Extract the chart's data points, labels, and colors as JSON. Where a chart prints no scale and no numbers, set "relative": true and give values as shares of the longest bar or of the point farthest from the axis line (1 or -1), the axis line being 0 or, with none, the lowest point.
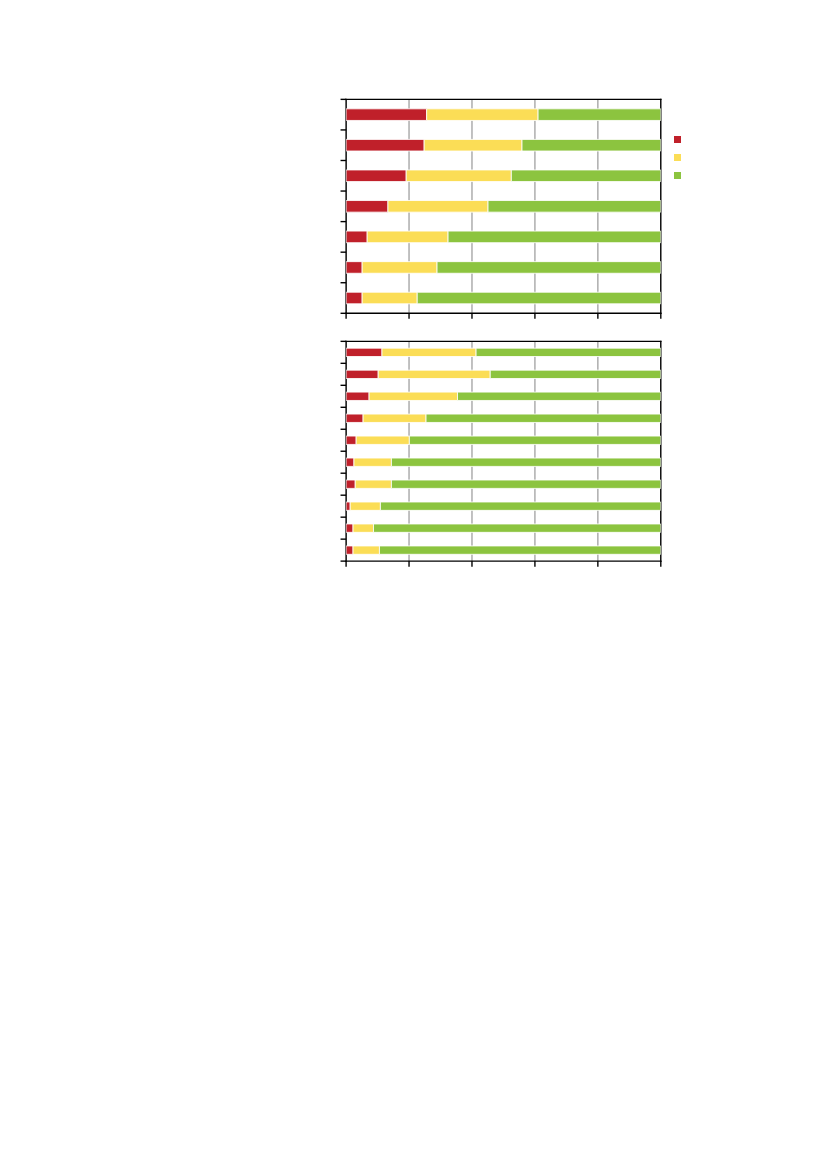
{
  "chart_data": [
    {
      "type": "bar",
      "orientation": "horizontal",
      "stacked": true,
      "relative": true,
      "grid": "x",
      "categories": [
        null,
        null,
        null,
        null,
        null,
        null,
        null
      ],
      "series": [
        {
          "color": "#c0202a",
          "values": [
            0.256,
            0.248,
            0.191,
            0.133,
            0.067,
            0.051,
            0.051
          ]
        },
        {
          "color": "#fbdd56",
          "values": [
            0.354,
            0.311,
            0.334,
            0.318,
            0.257,
            0.238,
            0.175
          ]
        },
        {
          "color": "#8cc43f",
          "values": [
            0.39,
            0.441,
            0.475,
            0.549,
            0.676,
            0.711,
            0.774
          ]
        }
      ]
    },
    {
      "type": "bar",
      "orientation": "horizontal",
      "stacked": true,
      "relative": true,
      "grid": "x",
      "categories": [
        null,
        null,
        null,
        null,
        null,
        null,
        null,
        null,
        null,
        null
      ],
      "series": [
        {
          "color": "#c0202a",
          "values": [
            0.114,
            0.102,
            0.073,
            0.054,
            0.032,
            0.025,
            0.029,
            0.013,
            0.022,
            0.022
          ]
        },
        {
          "color": "#fbdd56",
          "values": [
            0.299,
            0.356,
            0.281,
            0.2,
            0.169,
            0.119,
            0.115,
            0.096,
            0.065,
            0.084
          ]
        },
        {
          "color": "#8cc43f",
          "values": [
            0.587,
            0.542,
            0.646,
            0.746,
            0.799,
            0.856,
            0.856,
            0.891,
            0.913,
            0.894
          ]
        }
      ]
    }
  ]
}
